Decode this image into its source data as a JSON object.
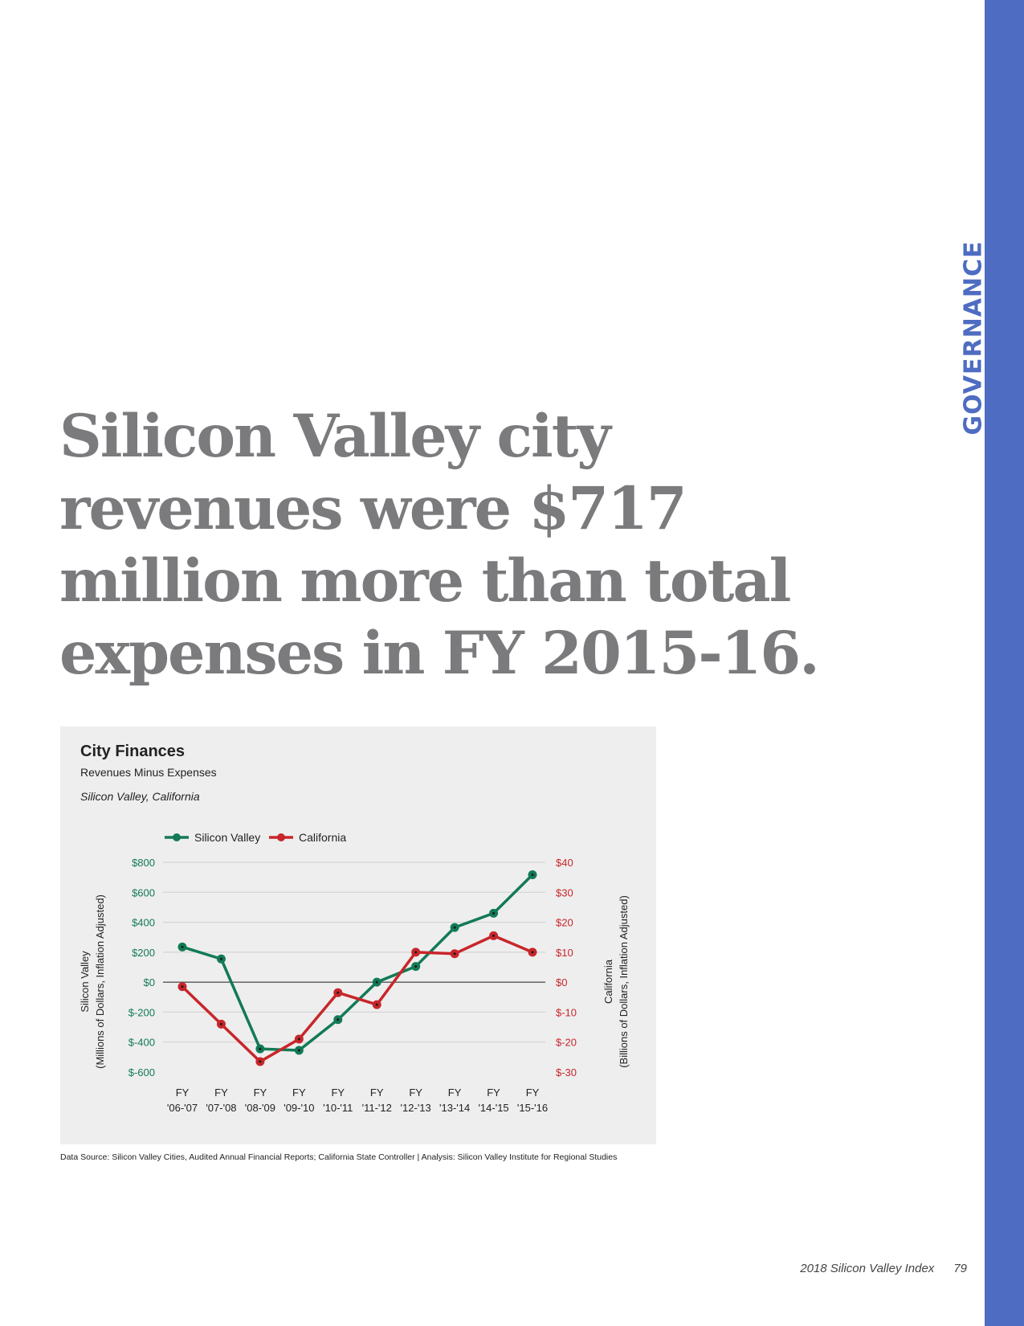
{
  "section": "GOVERNANCE",
  "headline": [
    "Silicon Valley city",
    "revenues were $717",
    "million more than total",
    "expenses in FY 2015-16."
  ],
  "chart_data": {
    "type": "line",
    "title": "City Finances",
    "subtitle": "Revenues Minus Expenses",
    "geography": "Silicon Valley, California",
    "categories": [
      "FY|'06-'07",
      "FY|'07-'08",
      "FY|'08-'09",
      "FY|'09-'10",
      "FY|'10-'11",
      "FY|'11-'12",
      "FY|'12-'13",
      "FY|'13-'14",
      "FY|'14-'15",
      "FY|'15-'16"
    ],
    "series": [
      {
        "name": "Silicon Valley",
        "axis": "left",
        "color": "#127a55",
        "values": [
          235,
          155,
          -445,
          -455,
          -250,
          0,
          105,
          365,
          460,
          717
        ]
      },
      {
        "name": "California",
        "axis": "right",
        "color": "#c8262a",
        "values": [
          -1.5,
          -14,
          -26.5,
          -19,
          -3.5,
          -7.5,
          10,
          9.5,
          15.5,
          10
        ]
      }
    ],
    "left_axis": {
      "label_line1": "Silicon Valley",
      "label_line2": "(Millions of Dollars, Inflation Adjusted)",
      "ticks": [
        "$800",
        "$600",
        "$400",
        "$200",
        "$0",
        "$-200",
        "$-400",
        "$-600"
      ],
      "tick_values": [
        800,
        600,
        400,
        200,
        0,
        -200,
        -400,
        -600
      ],
      "ylim": [
        -600,
        800
      ],
      "color": "#127a55"
    },
    "right_axis": {
      "label_line1": "California",
      "label_line2": "(Billions of Dollars, Inflation Adjusted)",
      "ticks": [
        "$40",
        "$30",
        "$20",
        "$10",
        "$0",
        "$-10",
        "$-20",
        "$-30"
      ],
      "tick_values": [
        40,
        30,
        20,
        10,
        0,
        -10,
        -20,
        -30
      ],
      "ylim": [
        -30,
        40
      ],
      "color": "#c8262a"
    },
    "grid": true,
    "legend": "top-left"
  },
  "source": "Data Source: Silicon Valley Cities, Audited Annual Financial Reports; California State Controller | Analysis: Silicon Valley Institute for Regional Studies",
  "footer": {
    "publication": "2018 Silicon Valley Index",
    "page": "79"
  }
}
